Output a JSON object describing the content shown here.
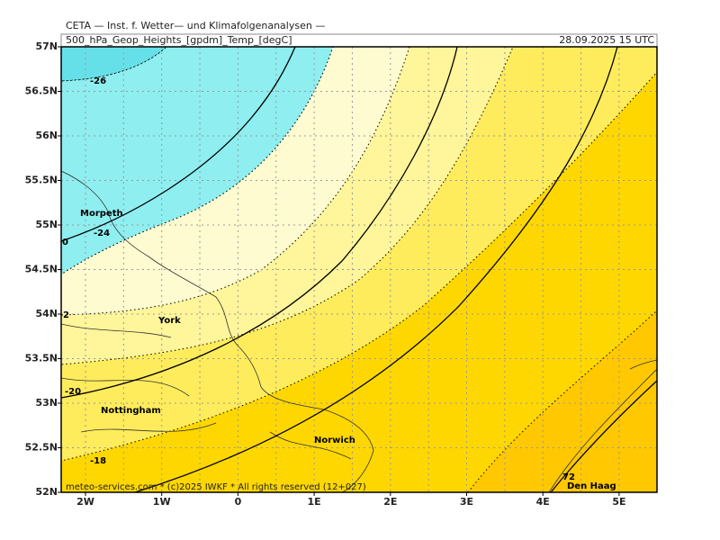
{
  "header": {
    "title": "CETA — Inst. f. Wetter— und Klimafolgenanalysen —",
    "left": "500_hPa_Geop_Heights_[gpdm]_Temp_[degC]",
    "right": "28.09.2025 15 UTC"
  },
  "axes": {
    "lat_labels": [
      "57N",
      "56.5N",
      "56N",
      "55.5N",
      "55N",
      "54.5N",
      "54N",
      "53.5N",
      "53N",
      "52.5N",
      "52N"
    ],
    "lon_labels": [
      "2W",
      "1W",
      "0",
      "1E",
      "2E",
      "3E",
      "4E",
      "5E"
    ]
  },
  "places": [
    "Morpeth",
    "York",
    "Nottingham",
    "Norwich",
    "Den Haag"
  ],
  "contour_labels": [
    "-26",
    "-24",
    "-20",
    "-18",
    "0",
    "2",
    "72"
  ],
  "footer": "meteo-services.com * (c)2025 IWKF * All rights reserved (12+027)"
}
